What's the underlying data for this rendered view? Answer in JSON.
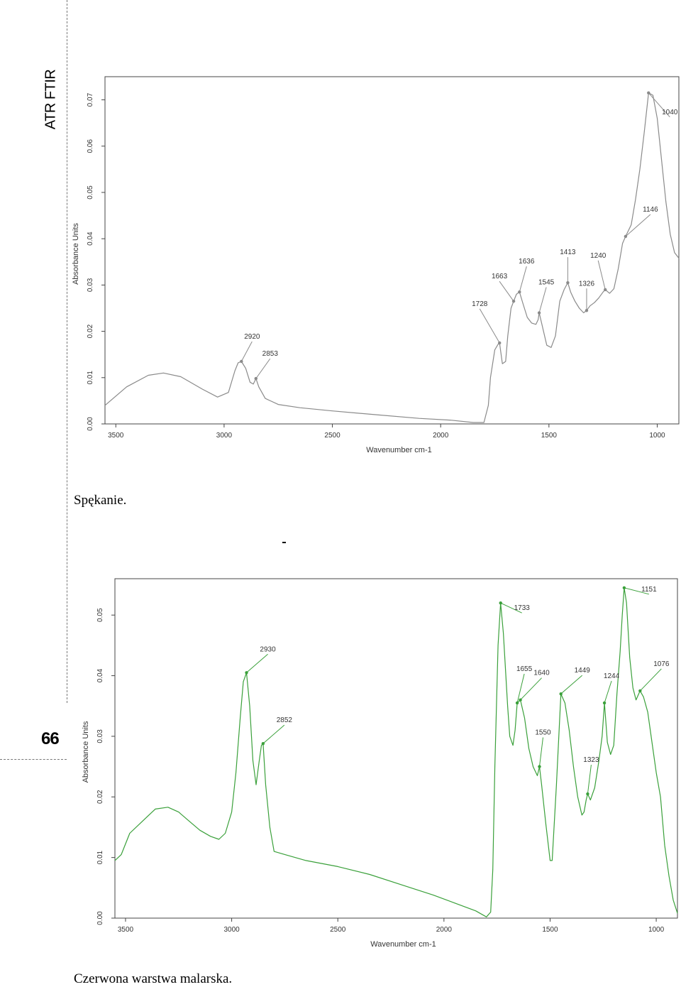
{
  "page": {
    "side_title": "ATR FTIR",
    "page_number": "66",
    "caption_top": "Spękanie.",
    "caption_bottom": "Czerwona warstwa malarska."
  },
  "chart_data": [
    {
      "type": "line",
      "title": "",
      "xlabel": "Wavenumber cm-1",
      "ylabel": "Absorbance Units",
      "xlim": [
        3550,
        900
      ],
      "ylim": [
        0,
        0.075
      ],
      "x_ticks": [
        3500,
        3000,
        2500,
        2000,
        1500,
        1000
      ],
      "y_ticks": [
        "0.00",
        "0.01",
        "0.02",
        "0.03",
        "0.04",
        "0.05",
        "0.06",
        "0.07"
      ],
      "line_color": "#8a8a8a",
      "series": [
        {
          "x": [
            3550,
            3450,
            3350,
            3280,
            3200,
            3100,
            3030,
            2980,
            2950,
            2935,
            2920,
            2900,
            2880,
            2865,
            2853,
            2840,
            2810,
            2750,
            2650,
            2500,
            2300,
            2100,
            1950,
            1850,
            1800,
            1780,
            1770,
            1750,
            1735,
            1728,
            1715,
            1700,
            1690,
            1675,
            1663,
            1650,
            1636,
            1620,
            1600,
            1580,
            1560,
            1550,
            1545,
            1530,
            1510,
            1490,
            1470,
            1450,
            1430,
            1413,
            1400,
            1380,
            1360,
            1340,
            1326,
            1310,
            1290,
            1270,
            1250,
            1240,
            1220,
            1200,
            1180,
            1160,
            1146,
            1120,
            1100,
            1080,
            1060,
            1040,
            1020,
            1000,
            980,
            960,
            940,
            920,
            900
          ],
          "y": [
            0.004,
            0.008,
            0.0105,
            0.011,
            0.0102,
            0.0075,
            0.0058,
            0.0068,
            0.0115,
            0.0132,
            0.0135,
            0.012,
            0.009,
            0.0086,
            0.0098,
            0.008,
            0.0055,
            0.0042,
            0.0035,
            0.0028,
            0.002,
            0.0012,
            0.0008,
            0.0003,
            0.0003,
            0.004,
            0.01,
            0.016,
            0.0172,
            0.0175,
            0.013,
            0.0135,
            0.019,
            0.025,
            0.0265,
            0.028,
            0.0285,
            0.026,
            0.023,
            0.0218,
            0.0215,
            0.0225,
            0.024,
            0.021,
            0.017,
            0.0165,
            0.019,
            0.0265,
            0.029,
            0.0305,
            0.0285,
            0.0265,
            0.025,
            0.024,
            0.0245,
            0.0255,
            0.0262,
            0.0272,
            0.0285,
            0.029,
            0.0282,
            0.0292,
            0.0335,
            0.039,
            0.0405,
            0.043,
            0.0485,
            0.055,
            0.063,
            0.0715,
            0.071,
            0.066,
            0.057,
            0.048,
            0.041,
            0.037,
            0.0358
          ]
        }
      ],
      "annotations": [
        {
          "label": "2920",
          "x": 2920,
          "y": 0.0135
        },
        {
          "label": "2853",
          "x": 2853,
          "y": 0.0098
        },
        {
          "label": "1728",
          "x": 1728,
          "y": 0.0175
        },
        {
          "label": "1663",
          "x": 1663,
          "y": 0.0265
        },
        {
          "label": "1636",
          "x": 1636,
          "y": 0.0285
        },
        {
          "label": "1545",
          "x": 1545,
          "y": 0.024
        },
        {
          "label": "1413",
          "x": 1413,
          "y": 0.0305
        },
        {
          "label": "1326",
          "x": 1326,
          "y": 0.0245
        },
        {
          "label": "1240",
          "x": 1240,
          "y": 0.029
        },
        {
          "label": "1146",
          "x": 1146,
          "y": 0.0405
        },
        {
          "label": "1040",
          "x": 1040,
          "y": 0.0715
        }
      ]
    },
    {
      "type": "line",
      "title": "",
      "xlabel": "Wavenumber cm-1",
      "ylabel": "Absorbance Units",
      "xlim": [
        3550,
        900
      ],
      "ylim": [
        0,
        0.056
      ],
      "x_ticks": [
        3500,
        3000,
        2500,
        2000,
        1500,
        1000
      ],
      "y_ticks": [
        "0.00",
        "0.01",
        "0.02",
        "0.03",
        "0.04",
        "0.05"
      ],
      "line_color": "#3aa03a",
      "series": [
        {
          "x": [
            3550,
            3520,
            3480,
            3420,
            3360,
            3300,
            3250,
            3200,
            3150,
            3100,
            3060,
            3030,
            3000,
            2980,
            2960,
            2945,
            2930,
            2915,
            2900,
            2885,
            2870,
            2860,
            2852,
            2840,
            2820,
            2800,
            2750,
            2650,
            2500,
            2350,
            2200,
            2050,
            1950,
            1850,
            1800,
            1780,
            1770,
            1760,
            1745,
            1733,
            1720,
            1700,
            1690,
            1675,
            1665,
            1655,
            1640,
            1620,
            1600,
            1580,
            1560,
            1550,
            1540,
            1520,
            1500,
            1490,
            1470,
            1449,
            1430,
            1410,
            1390,
            1370,
            1350,
            1340,
            1330,
            1323,
            1310,
            1290,
            1270,
            1255,
            1244,
            1230,
            1215,
            1200,
            1185,
            1170,
            1160,
            1151,
            1140,
            1125,
            1110,
            1095,
            1076,
            1060,
            1040,
            1020,
            1000,
            980,
            960,
            940,
            920,
            900
          ],
          "y": [
            0.0095,
            0.0105,
            0.014,
            0.016,
            0.018,
            0.0183,
            0.0175,
            0.016,
            0.0145,
            0.0135,
            0.013,
            0.014,
            0.0175,
            0.024,
            0.033,
            0.039,
            0.0405,
            0.035,
            0.026,
            0.022,
            0.026,
            0.0285,
            0.0288,
            0.022,
            0.015,
            0.011,
            0.0105,
            0.0095,
            0.0085,
            0.0072,
            0.0055,
            0.0038,
            0.0025,
            0.0012,
            0.0002,
            0.001,
            0.008,
            0.025,
            0.045,
            0.052,
            0.047,
            0.035,
            0.03,
            0.0285,
            0.031,
            0.0355,
            0.036,
            0.033,
            0.028,
            0.025,
            0.0235,
            0.025,
            0.022,
            0.0155,
            0.0095,
            0.0095,
            0.022,
            0.037,
            0.0355,
            0.031,
            0.025,
            0.02,
            0.017,
            0.0175,
            0.0195,
            0.0205,
            0.0195,
            0.0215,
            0.026,
            0.03,
            0.0355,
            0.029,
            0.027,
            0.0285,
            0.037,
            0.044,
            0.05,
            0.0545,
            0.052,
            0.043,
            0.038,
            0.036,
            0.0375,
            0.0365,
            0.034,
            0.029,
            0.024,
            0.02,
            0.012,
            0.007,
            0.003,
            0.0008
          ]
        }
      ],
      "annotations": [
        {
          "label": "2930",
          "x": 2930,
          "y": 0.0405
        },
        {
          "label": "2852",
          "x": 2852,
          "y": 0.0288
        },
        {
          "label": "1733",
          "x": 1733,
          "y": 0.052
        },
        {
          "label": "1655",
          "x": 1655,
          "y": 0.0355
        },
        {
          "label": "1640",
          "x": 1640,
          "y": 0.036
        },
        {
          "label": "1550",
          "x": 1550,
          "y": 0.025
        },
        {
          "label": "1449",
          "x": 1449,
          "y": 0.037
        },
        {
          "label": "1323",
          "x": 1323,
          "y": 0.0205
        },
        {
          "label": "1244",
          "x": 1244,
          "y": 0.0355
        },
        {
          "label": "1151",
          "x": 1151,
          "y": 0.0545
        },
        {
          "label": "1076",
          "x": 1076,
          "y": 0.0375
        }
      ]
    }
  ]
}
